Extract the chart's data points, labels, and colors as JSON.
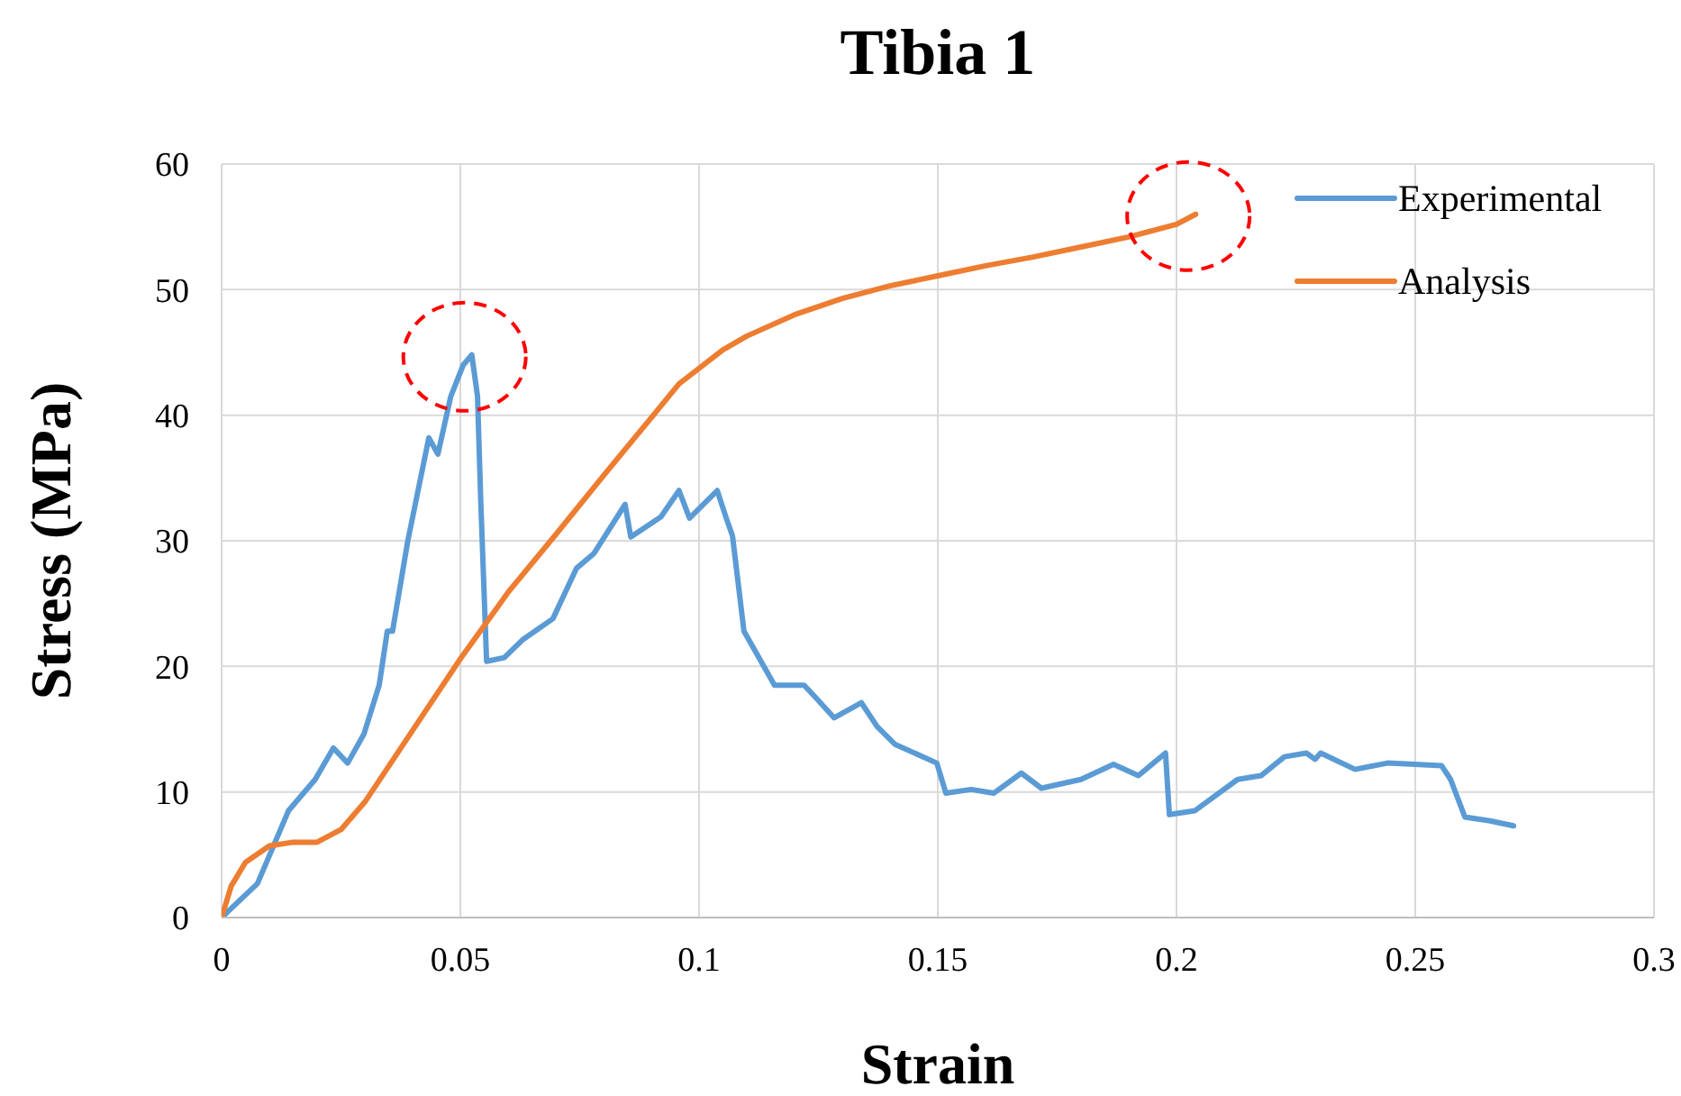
{
  "chart_data": {
    "type": "line",
    "title": "Tibia 1",
    "xlabel": "Strain",
    "ylabel": "Stress (MPa)",
    "xlim": [
      0,
      0.3
    ],
    "xticks": [
      0,
      0.05,
      0.1,
      0.15,
      0.2,
      0.25,
      0.3
    ],
    "ylim": [
      0,
      60
    ],
    "yticks": [
      0,
      10,
      20,
      30,
      40,
      50,
      60
    ],
    "grid": true,
    "legend": "top right",
    "marker": "none",
    "line_style": "solid",
    "series": [
      {
        "name": "Experimental",
        "color": "#5b9bd5",
        "x": [
          0,
          0.0075,
          0.014,
          0.0196,
          0.0234,
          0.0264,
          0.0298,
          0.033,
          0.0347,
          0.0358,
          0.039,
          0.0434,
          0.0453,
          0.048,
          0.0506,
          0.0524,
          0.0536,
          0.0543,
          0.0555,
          0.0592,
          0.063,
          0.0694,
          0.0743,
          0.078,
          0.0845,
          0.0857,
          0.092,
          0.0958,
          0.098,
          0.1038,
          0.1057,
          0.107,
          0.1094,
          0.1158,
          0.122,
          0.1247,
          0.1283,
          0.134,
          0.1373,
          0.141,
          0.1498,
          0.1517,
          0.157,
          0.1617,
          0.1675,
          0.1717,
          0.18,
          0.1868,
          0.192,
          0.1977,
          0.1985,
          0.2038,
          0.2128,
          0.2177,
          0.2226,
          0.2272,
          0.229,
          0.2302,
          0.2374,
          0.2442,
          0.2555,
          0.2574,
          0.2604,
          0.2657,
          0.2706
        ],
        "values": [
          0,
          2.7,
          8.5,
          11.0,
          13.5,
          12.3,
          14.6,
          18.5,
          22.8,
          22.8,
          30.0,
          38.2,
          36.9,
          41.5,
          44.0,
          44.8,
          41.5,
          32.9,
          20.4,
          20.7,
          22.1,
          23.8,
          27.8,
          29.0,
          32.9,
          30.3,
          31.9,
          34.0,
          31.8,
          34.0,
          31.8,
          30.4,
          22.8,
          18.5,
          18.5,
          17.4,
          15.9,
          17.1,
          15.2,
          13.8,
          12.3,
          9.9,
          10.2,
          9.9,
          11.5,
          10.3,
          11.0,
          12.2,
          11.3,
          13.1,
          8.2,
          8.5,
          11.0,
          11.3,
          12.8,
          13.1,
          12.6,
          13.1,
          11.8,
          12.3,
          12.1,
          11.0,
          8.0,
          7.7,
          7.3
        ]
      },
      {
        "name": "Analysis",
        "color": "#ed7d31",
        "x": [
          0,
          0.002,
          0.005,
          0.01,
          0.015,
          0.02,
          0.025,
          0.03,
          0.04,
          0.05,
          0.06,
          0.07,
          0.08,
          0.09,
          0.0958,
          0.105,
          0.11,
          0.12,
          0.13,
          0.14,
          0.15,
          0.16,
          0.17,
          0.18,
          0.19,
          0.2,
          0.204
        ],
        "values": [
          0,
          2.5,
          4.4,
          5.7,
          6.0,
          6.0,
          7.0,
          9.2,
          14.9,
          20.6,
          25.9,
          30.5,
          35.2,
          39.8,
          42.5,
          45.2,
          46.3,
          48.0,
          49.3,
          50.3,
          51.1,
          51.9,
          52.6,
          53.4,
          54.2,
          55.2,
          56.0
        ]
      }
    ]
  }
}
